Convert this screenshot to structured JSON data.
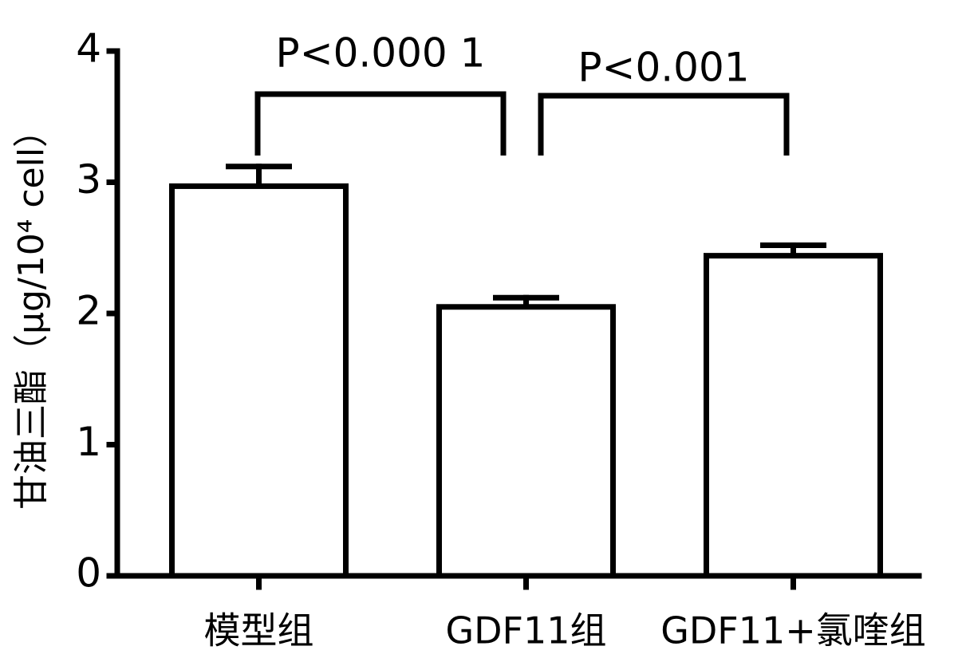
{
  "chart_data": {
    "type": "bar",
    "y_label": "甘油三酯（μg/10⁴ cell）",
    "categories": [
      "模型组",
      "GDF11组",
      "GDF11+氯喹组"
    ],
    "values": [
      2.97,
      2.05,
      2.44
    ],
    "errors": [
      0.15,
      0.07,
      0.08
    ],
    "color": "#ffffff",
    "ylim": [
      0,
      4
    ],
    "yticks": [
      0,
      1,
      2,
      3,
      4
    ],
    "annotations": [
      "P<0.000 1",
      "P<0.001"
    ]
  }
}
